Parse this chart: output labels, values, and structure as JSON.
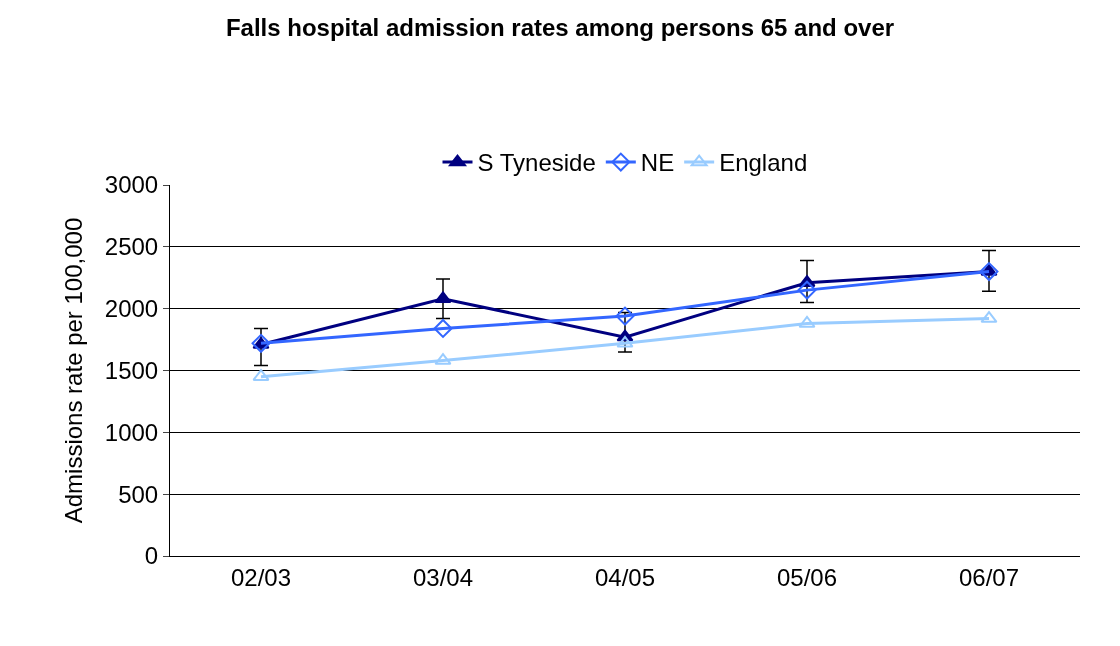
{
  "chart_data": {
    "type": "line",
    "title": "Falls hospital admission rates among persons 65 and over",
    "ylabel": "Admissions rate per 100,000",
    "categories": [
      "02/03",
      "03/04",
      "04/05",
      "05/06",
      "06/07"
    ],
    "series": [
      {
        "name": "S Tyneside",
        "color": "#000080",
        "marker": "triangle",
        "values": [
          1710,
          2080,
          1770,
          2210,
          2300
        ],
        "errors": [
          [
            1540,
            1840
          ],
          [
            1920,
            2240
          ],
          [
            1650,
            1970
          ],
          [
            2050,
            2390
          ],
          [
            2140,
            2470
          ]
        ]
      },
      {
        "name": "NE",
        "color": "#3366ff",
        "marker": "diamond-open",
        "values": [
          1720,
          1840,
          1940,
          2150,
          2300
        ]
      },
      {
        "name": "England",
        "color": "#99ccff",
        "marker": "triangle-open",
        "values": [
          1450,
          1580,
          1720,
          1880,
          1920
        ]
      }
    ],
    "ylim": [
      0,
      3000
    ],
    "yticks": [
      0,
      500,
      1000,
      1500,
      2000,
      2500,
      3000
    ],
    "grid": "y",
    "legend": "top"
  }
}
